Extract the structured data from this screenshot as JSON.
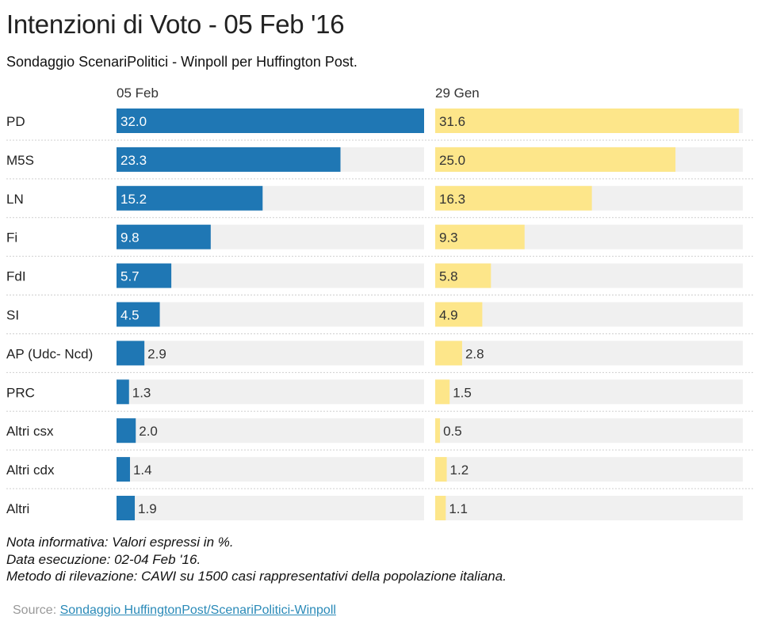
{
  "title": "Intenzioni di Voto - 05 Feb '16",
  "subtitle": "Sondaggio ScenariPolitici - Winpoll per Huffington Post.",
  "notes": [
    "Nota informativa: Valori espressi in %.",
    "Data esecuzione: 02-04 Feb '16.",
    "Metodo di rilevazione: CAWI su 1500 casi rappresentativi della popolazione italiana."
  ],
  "source": {
    "label": "Source:",
    "link_text": "Sondaggio HuffingtonPost/ScenariPolitici-Winpoll"
  },
  "colors": {
    "series1": "#1f77b4",
    "series2": "#fde68a",
    "track": "#f0f0f0",
    "label_inside": "#ffffff",
    "label_outside": "#333333"
  },
  "chart_data": {
    "type": "bar",
    "orientation": "horizontal",
    "categories": [
      "PD",
      "M5S",
      "LN",
      "Fi",
      "FdI",
      "SI",
      "AP (Udc- Ncd)",
      "PRC",
      "Altri csx",
      "Altri cdx",
      "Altri"
    ],
    "series": [
      {
        "name": "05 Feb",
        "values": [
          32.0,
          23.3,
          15.2,
          9.8,
          5.7,
          4.5,
          2.9,
          1.3,
          2.0,
          1.4,
          1.9
        ]
      },
      {
        "name": "29 Gen",
        "values": [
          31.6,
          25.0,
          16.3,
          9.3,
          5.8,
          4.9,
          2.8,
          1.5,
          0.5,
          1.2,
          1.1
        ]
      }
    ],
    "xlim": [
      0,
      32
    ],
    "value_format": "one decimal",
    "grid": false
  }
}
